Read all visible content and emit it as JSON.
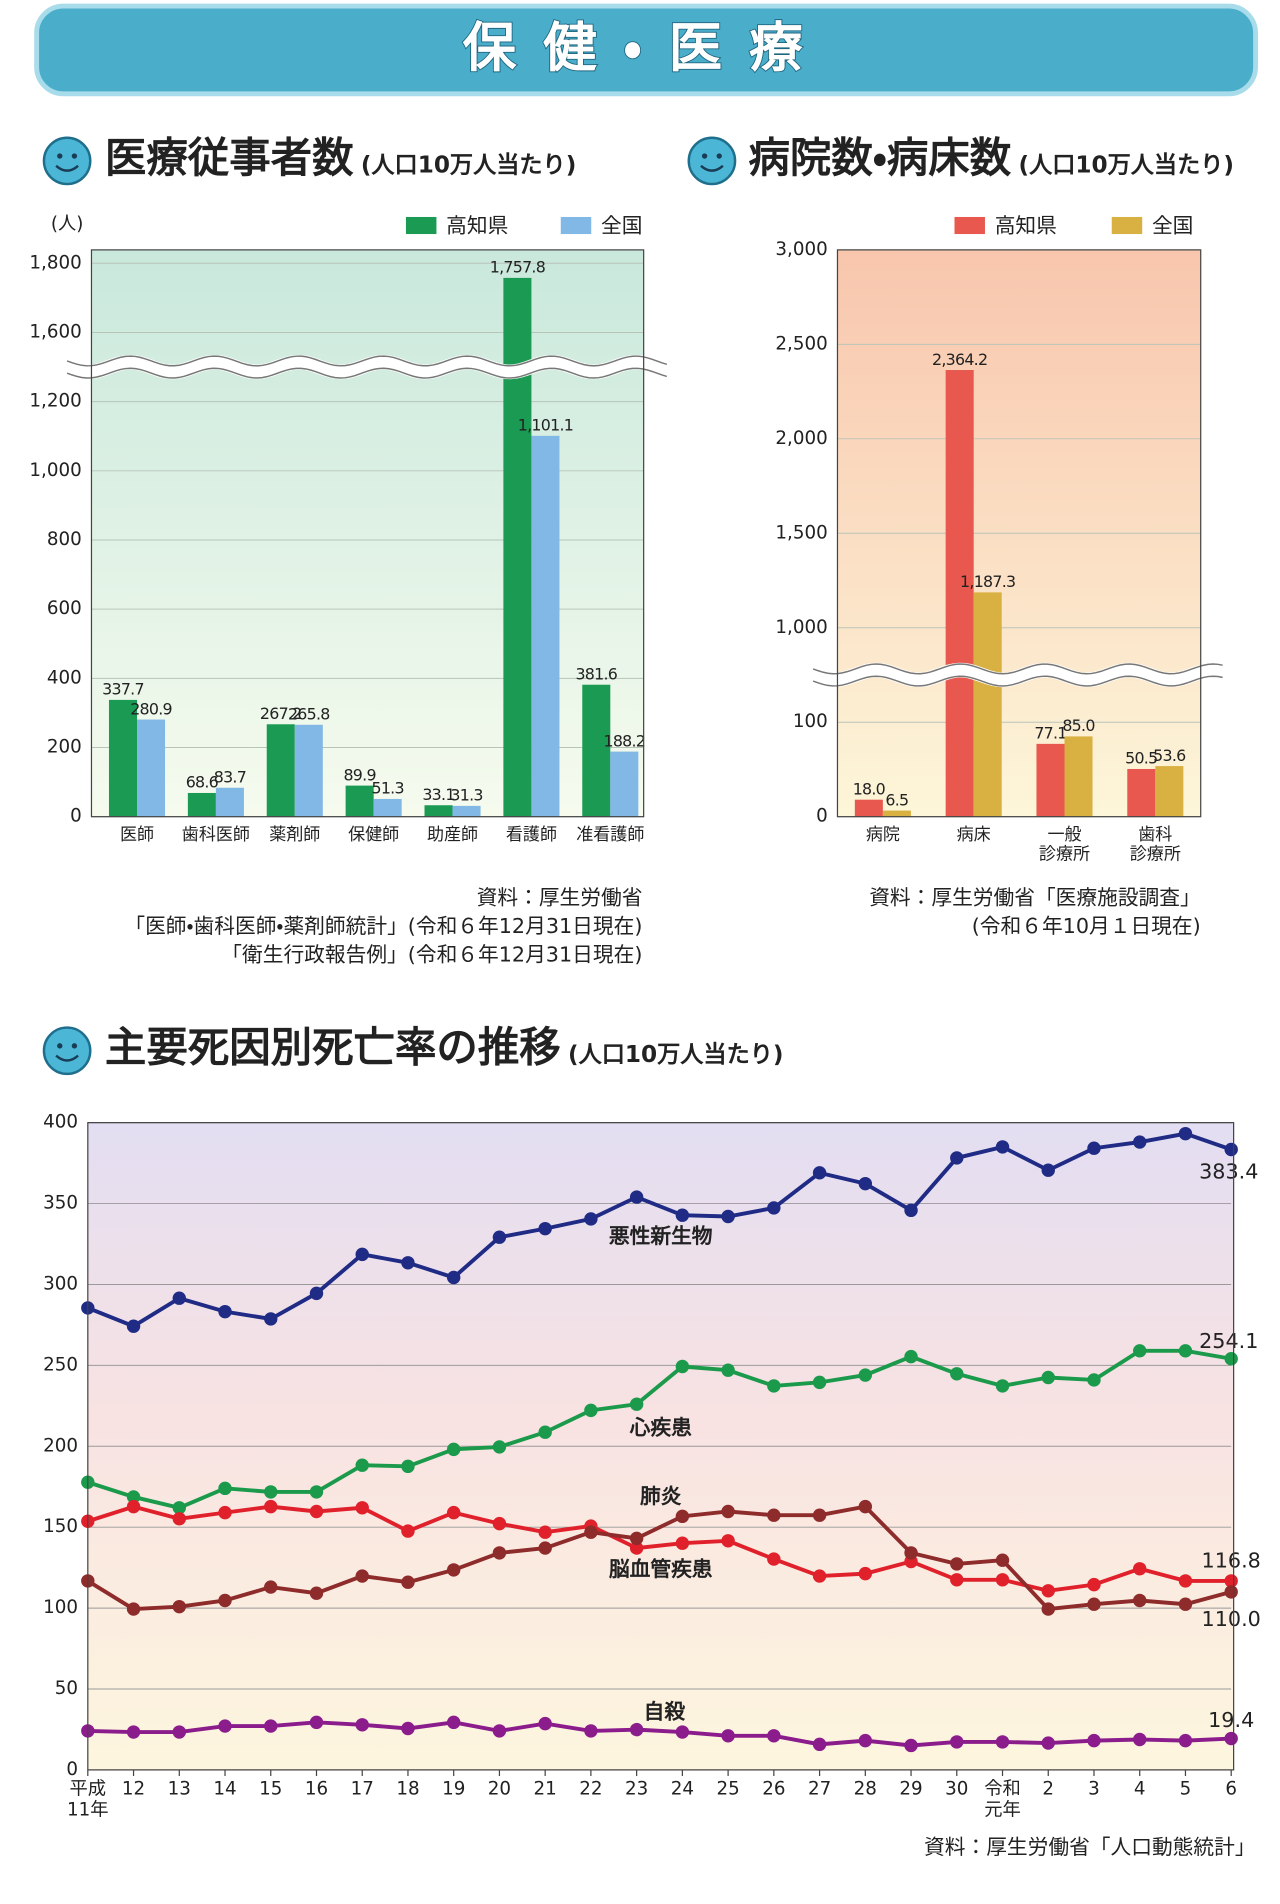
{
  "header": {
    "title": "保健・医療"
  },
  "chart_data": [
    {
      "type": "bar",
      "title": "医療従事者数",
      "subtitle": "(人口10万人当たり)",
      "y_label": "(人)",
      "categories": [
        "医師",
        "歯科医師",
        "薬剤師",
        "保健師",
        "助産師",
        "看護師",
        "准看護師"
      ],
      "series": [
        {
          "name": "高知県",
          "color": "#1a9a52",
          "values": [
            337.7,
            68.6,
            267.2,
            89.9,
            33.1,
            1757.8,
            381.6
          ],
          "value_labels": [
            "337.7",
            "68.6",
            "267.2",
            "89.9",
            "33.1",
            "1,757.8",
            "381.6"
          ]
        },
        {
          "name": "全国",
          "color": "#82b8e6",
          "values": [
            280.9,
            83.7,
            265.8,
            51.3,
            31.3,
            1101.1,
            188.2
          ],
          "value_labels": [
            "280.9",
            "83.7",
            "265.8",
            "51.3",
            "31.3",
            "1,101.1",
            "188.2"
          ]
        }
      ],
      "ylim": [
        0,
        1800
      ],
      "yticks": [
        0,
        200,
        400,
        600,
        800,
        {
          "value": 1000,
          "label": "1,000"
        },
        {
          "value": 1200,
          "label": "1,200"
        },
        {
          "value": 1600,
          "label": "1,600"
        },
        {
          "value": 1800,
          "label": "1,800"
        }
      ],
      "axis_break": [
        1200,
        1600
      ],
      "grid": true,
      "source": [
        "資料：厚生労働省",
        "「医師・歯科医師・薬剤師統計」(令和６年12月31日現在)",
        "「衛生行政報告例」(令和６年12月31日現在)"
      ]
    },
    {
      "type": "bar",
      "title": "病院数・病床数",
      "subtitle": "(人口10万人当たり)",
      "categories": [
        "病院",
        "病床",
        "一般\n診療所",
        "歯科\n診療所"
      ],
      "series": [
        {
          "name": "高知県",
          "color": "#e8584f",
          "values": [
            18.0,
            2364.2,
            77.1,
            50.5
          ],
          "value_labels": [
            "18.0",
            "2,364.2",
            "77.1",
            "50.5"
          ]
        },
        {
          "name": "全国",
          "color": "#d9b143",
          "values": [
            6.5,
            1187.3,
            85.0,
            53.6
          ],
          "value_labels": [
            "6.5",
            "1,187.3",
            "85.0",
            "53.6"
          ]
        }
      ],
      "ylim": [
        0,
        3000
      ],
      "yticks": [
        0,
        100,
        {
          "value": 1000,
          "label": "1,000"
        },
        {
          "value": 1500,
          "label": "1,500"
        },
        {
          "value": 2000,
          "label": "2,000"
        },
        {
          "value": 2500,
          "label": "2,500"
        },
        {
          "value": 3000,
          "label": "3,000"
        }
      ],
      "axis_break": [
        100,
        1000
      ],
      "grid": true,
      "source": [
        "資料：厚生労働省「医療施設調査」",
        "(令和６年10月１日現在)"
      ]
    },
    {
      "type": "line",
      "title": "主要死因別死亡率の推移",
      "subtitle": "(人口10万人当たり)",
      "categories": [
        "平成\n11年",
        "12",
        "13",
        "14",
        "15",
        "16",
        "17",
        "18",
        "19",
        "20",
        "21",
        "22",
        "23",
        "24",
        "25",
        "26",
        "27",
        "28",
        "29",
        "30",
        "令和\n元年",
        "2",
        "3",
        "4",
        "5",
        "6"
      ],
      "series": [
        {
          "name": "悪性新生物",
          "color": "#1f2b85",
          "values": [
            285.5,
            274.2,
            291.5,
            283.2,
            278.7,
            294.5,
            318.6,
            313.4,
            304.3,
            329.2,
            334.5,
            340.5,
            354.0,
            342.8,
            342.0,
            347.3,
            369.0,
            362.3,
            345.8,
            378.2,
            385.0,
            370.6,
            384.2,
            388.0,
            393.2,
            383.4
          ]
        },
        {
          "name": "心疾患",
          "color": "#1c9a4c",
          "values": [
            177.8,
            168.7,
            162.0,
            174.0,
            171.8,
            171.8,
            188.3,
            187.6,
            198.1,
            199.6,
            208.7,
            222.2,
            226.0,
            249.3,
            247.0,
            237.3,
            239.5,
            244.0,
            255.4,
            244.8,
            237.3,
            242.5,
            241.0,
            259.0,
            259.0,
            254.1
          ]
        },
        {
          "name": "脳血管疾患",
          "color": "#e0212b",
          "values": [
            153.7,
            162.7,
            155.2,
            159.0,
            162.7,
            159.7,
            162.0,
            147.6,
            159.0,
            152.2,
            146.9,
            150.7,
            137.1,
            140.1,
            141.6,
            130.3,
            119.8,
            121.3,
            128.8,
            117.5,
            117.5,
            110.7,
            114.5,
            124.3,
            116.8,
            116.8
          ]
        },
        {
          "name": "肺炎",
          "color": "#8e2b2b",
          "values": [
            116.8,
            99.4,
            100.9,
            104.7,
            113.0,
            109.2,
            119.8,
            116.0,
            123.6,
            134.1,
            137.1,
            146.9,
            143.1,
            156.7,
            159.7,
            157.4,
            157.4,
            162.7,
            134.1,
            127.3,
            129.6,
            99.4,
            102.4,
            104.7,
            102.4,
            110.0
          ],
          "value_labels": [
            null,
            null,
            null,
            null,
            null,
            null,
            null,
            null,
            null,
            null,
            null,
            null,
            null,
            null,
            null,
            null,
            null,
            null,
            null,
            null,
            null,
            null,
            null,
            null,
            null,
            "110.0"
          ]
        },
        {
          "name": "自殺",
          "color": "#8b1c8c",
          "values": [
            24.1,
            23.4,
            23.4,
            27.1,
            27.1,
            29.4,
            27.9,
            25.6,
            29.4,
            24.1,
            28.6,
            24.1,
            24.9,
            23.4,
            21.1,
            21.1,
            15.8,
            18.1,
            15.1,
            17.3,
            17.3,
            16.6,
            18.1,
            18.8,
            18.1,
            19.4
          ]
        }
      ],
      "ylim": [
        0,
        400
      ],
      "yticks": [
        0,
        50,
        100,
        150,
        200,
        250,
        300,
        350,
        400
      ],
      "grid": true,
      "source": [
        "資料：厚生労働省「人口動態統計」"
      ]
    }
  ]
}
